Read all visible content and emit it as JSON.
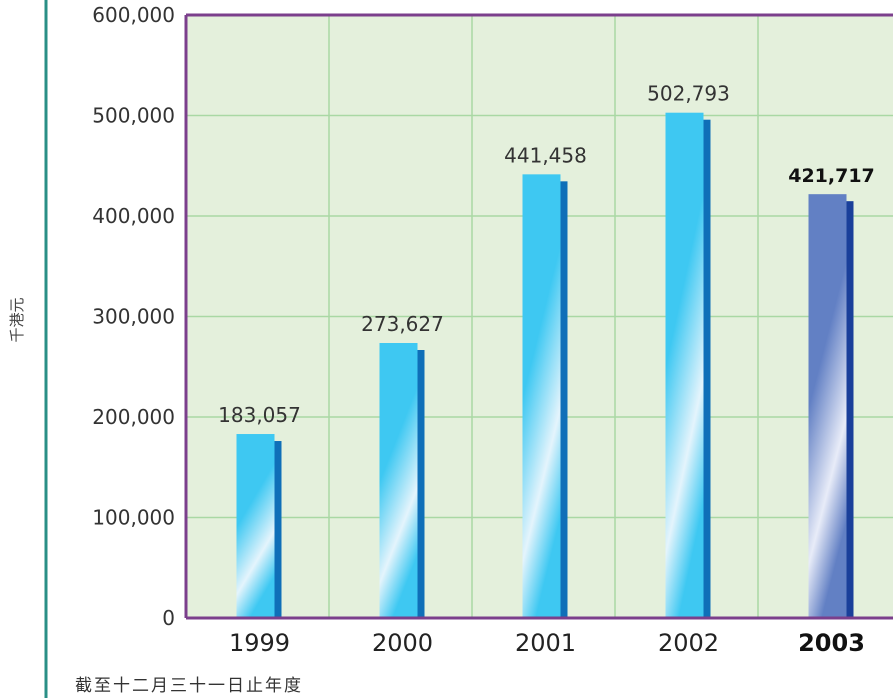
{
  "chart_data": {
    "type": "bar",
    "categories": [
      "1999",
      "2000",
      "2001",
      "2002",
      "2003"
    ],
    "values": [
      183057,
      273627,
      441458,
      502793,
      421717
    ],
    "value_labels": [
      "183,057",
      "273,627",
      "441,458",
      "502,793",
      "421,717"
    ],
    "highlight_index": 4,
    "ylabel": "千港元",
    "xlabel": "截至十二月三十一日止年度",
    "ylim": [
      0,
      600000
    ],
    "yticks": [
      0,
      100000,
      200000,
      300000,
      400000,
      500000,
      600000
    ],
    "ytick_labels": [
      "0",
      "100,000",
      "200,000",
      "300,000",
      "400,000",
      "500,000",
      "600,000"
    ],
    "grid": true,
    "colors": {
      "plot_background": "#e4f0dc",
      "grid": "#a9d8a4",
      "frame": "#7b3f8c",
      "left_rule": "#2a8f86",
      "bar_top": "#3ec8f2",
      "bar_light": "#e4f4fc",
      "bar_shadow": "#0f6fb8",
      "highlight_top": "#6280c4",
      "highlight_light": "#e8ecf8",
      "highlight_shadow": "#1a3f9a"
    }
  }
}
